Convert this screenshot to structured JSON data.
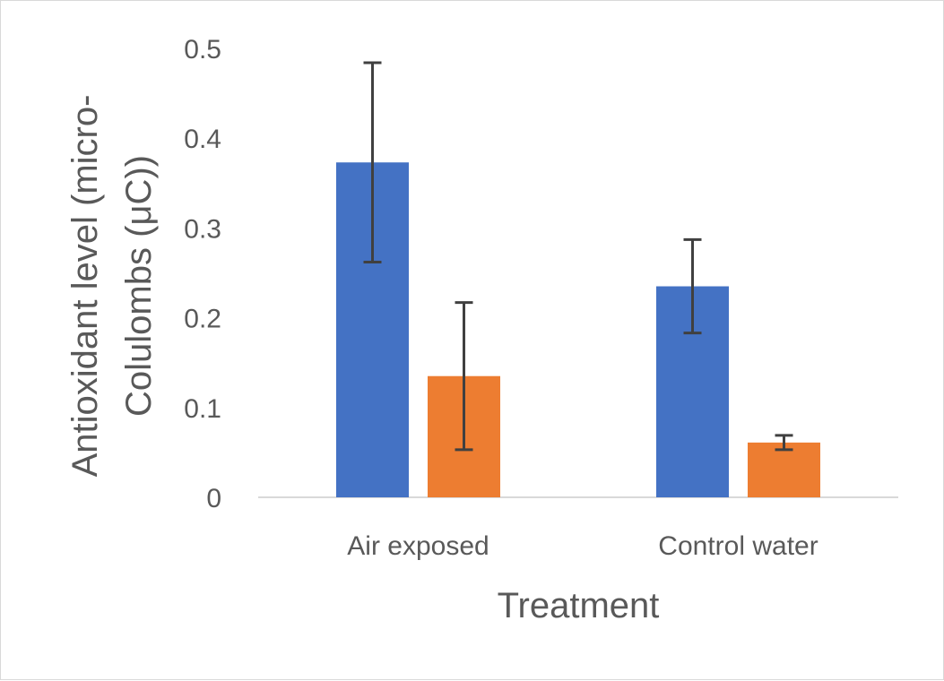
{
  "chart_data": {
    "type": "bar",
    "categories": [
      "Air exposed",
      "Control water"
    ],
    "series": [
      {
        "values": [
          0.373,
          0.235
        ],
        "errors": [
          0.111,
          0.052
        ],
        "color": "#4472C4"
      },
      {
        "values": [
          0.135,
          0.061
        ],
        "errors": [
          0.082,
          0.008
        ],
        "color": "#ED7D31"
      }
    ],
    "xlabel": "Treatment",
    "ylabel_lines": [
      "Antioxidant level (micro-",
      "Colulombs (μC))"
    ],
    "ylim": [
      0,
      0.5
    ],
    "yticks": [
      "0",
      "0.1",
      "0.2",
      "0.3",
      "0.4",
      "0.5"
    ],
    "grid": false,
    "axis_color": "#d9d9d9",
    "error_bar_color": "#404040"
  }
}
